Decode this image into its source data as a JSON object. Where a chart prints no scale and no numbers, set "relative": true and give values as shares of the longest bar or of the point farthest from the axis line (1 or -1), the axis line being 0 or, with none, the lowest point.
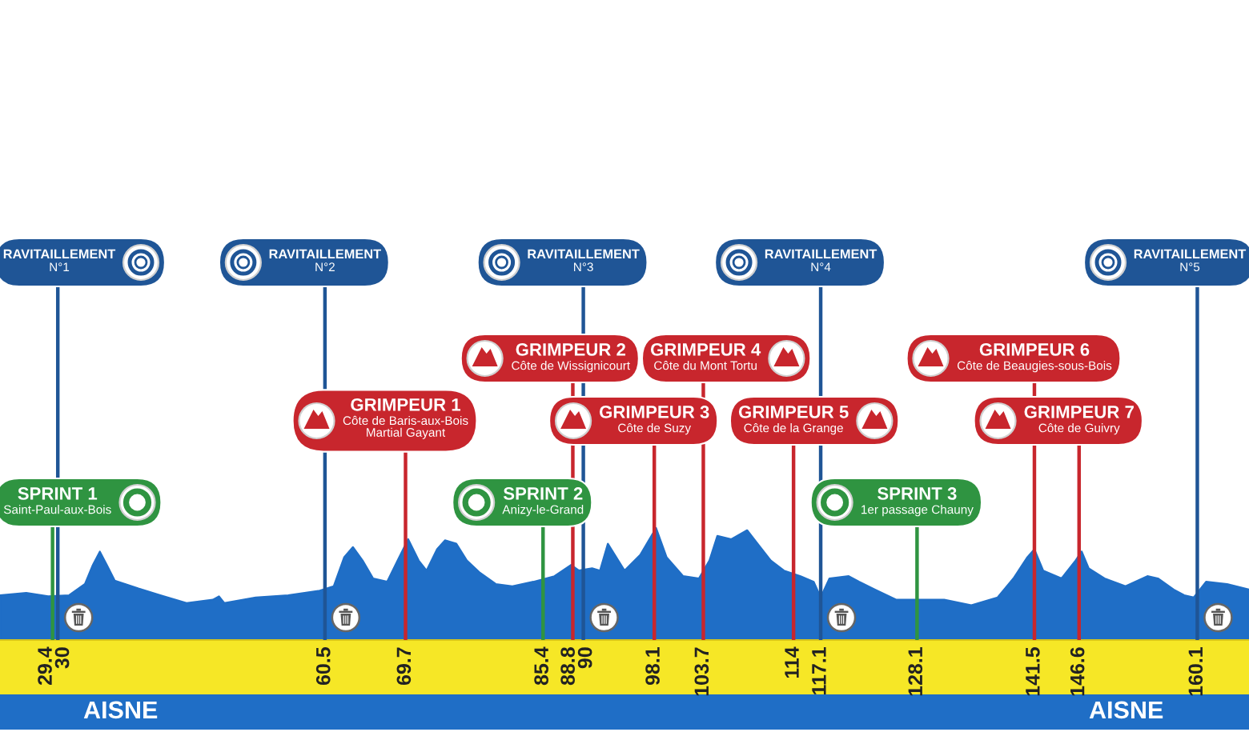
{
  "chart_data": {
    "type": "area",
    "relative": true,
    "color": "#1f6ec6",
    "x": [
      23.4,
      26.4,
      28.9,
      31.3,
      33.1,
      34.0,
      34.8,
      35.6,
      36.5,
      39.2,
      41.7,
      44.7,
      47.7,
      48.4,
      49.0,
      52.6,
      56.3,
      59.9,
      61.5,
      62.7,
      63.7,
      64.8,
      66.0,
      67.6,
      68.8,
      70.0,
      71.2,
      72.1,
      73.3,
      74.2,
      75.5,
      76.7,
      78.2,
      80.0,
      81.9,
      84.3,
      86.7,
      88.6,
      89.5,
      91.0,
      91.9,
      92.8,
      94.7,
      96.5,
      98.3,
      99.5,
      101.4,
      103.2,
      104.4,
      105.3,
      106.9,
      108.7,
      109.9,
      111.4,
      112.9,
      114.8,
      116.3,
      117.1,
      118.1,
      120.3,
      121.5,
      123.3,
      125.7,
      128.8,
      131.2,
      134.3,
      137.3,
      139.1,
      140.7,
      141.5,
      142.5,
      144.6,
      146.2,
      146.9,
      147.7,
      149.5,
      151.9,
      154.4,
      155.6,
      157.4,
      158.6,
      159.7,
      161.1,
      163.5,
      166.0
    ],
    "values": [
      0.4,
      0.42,
      0.39,
      0.4,
      0.5,
      0.67,
      0.79,
      0.67,
      0.53,
      0.46,
      0.4,
      0.33,
      0.36,
      0.39,
      0.33,
      0.38,
      0.4,
      0.44,
      0.48,
      0.74,
      0.83,
      0.71,
      0.55,
      0.52,
      0.71,
      0.9,
      0.71,
      0.62,
      0.81,
      0.89,
      0.86,
      0.71,
      0.6,
      0.5,
      0.48,
      0.52,
      0.57,
      0.67,
      0.62,
      0.64,
      0.62,
      0.86,
      0.62,
      0.76,
      1.0,
      0.74,
      0.57,
      0.55,
      0.71,
      0.93,
      0.9,
      0.98,
      0.86,
      0.71,
      0.62,
      0.57,
      0.52,
      0.38,
      0.55,
      0.57,
      0.52,
      0.45,
      0.36,
      0.36,
      0.36,
      0.31,
      0.38,
      0.55,
      0.74,
      0.81,
      0.62,
      0.55,
      0.71,
      0.79,
      0.64,
      0.55,
      0.48,
      0.57,
      0.55,
      0.45,
      0.4,
      0.38,
      0.52,
      0.5,
      0.45
    ],
    "xlim": [
      23.4,
      166.0
    ],
    "xticks": [
      29.4,
      30,
      60.5,
      69.7,
      85.4,
      88.8,
      90,
      98.1,
      103.7,
      114,
      117.1,
      128.1,
      141.5,
      146.6,
      160.1
    ],
    "tick_labels": "x",
    "ref_lines": [
      {
        "axis": "x",
        "value": 30,
        "label": "RAVITAILLEMENT\nN°1",
        "color": "#1f5596"
      },
      {
        "axis": "x",
        "value": 60.5,
        "label": "RAVITAILLEMENT\nN°2",
        "color": "#1f5596"
      },
      {
        "axis": "x",
        "value": 90,
        "label": "RAVITAILLEMENT\nN°3",
        "color": "#1f5596"
      },
      {
        "axis": "x",
        "value": 117.1,
        "label": "RAVITAILLEMENT\nN°4",
        "color": "#1f5596"
      },
      {
        "axis": "x",
        "value": 160.1,
        "label": "RAVITAILLEMENT\nN°5",
        "color": "#1f5596"
      },
      {
        "axis": "x",
        "value": 69.7,
        "label": "GRIMPEUR 1\nCôte de Baris-aux-Bois\nMartial Gayant",
        "color": "#c8262d"
      },
      {
        "axis": "x",
        "value": 88.8,
        "label": "GRIMPEUR 2\nCôte de Wissignicourt",
        "color": "#c8262d"
      },
      {
        "axis": "x",
        "value": 98.1,
        "label": "GRIMPEUR 3\nCôte de Suzy",
        "color": "#c8262d"
      },
      {
        "axis": "x",
        "value": 103.7,
        "label": "GRIMPEUR 4\nCôte du Mont Tortu",
        "color": "#c8262d"
      },
      {
        "axis": "x",
        "value": 114,
        "label": "GRIMPEUR 5\nCôte de la Grange",
        "color": "#c8262d"
      },
      {
        "axis": "x",
        "value": 141.5,
        "label": "GRIMPEUR 6\nCôte de Beaugies-sous-Bois",
        "color": "#c8262d"
      },
      {
        "axis": "x",
        "value": 146.6,
        "label": "GRIMPEUR 7\nCôte de Guivry",
        "color": "#c8262d"
      },
      {
        "axis": "x",
        "value": 29.4,
        "label": "SPRINT 1\nSaint-Paul-aux-Bois",
        "color": "#2f9441"
      },
      {
        "axis": "x",
        "value": 85.4,
        "label": "SPRINT 2\nAnizy-le-Grand",
        "color": "#2f9441"
      },
      {
        "axis": "x",
        "value": 128.1,
        "label": "SPRINT 3\n1er passage Chauny",
        "color": "#2f9441"
      }
    ],
    "annotations": [
      "AISNE",
      "AISNE"
    ]
  }
}
